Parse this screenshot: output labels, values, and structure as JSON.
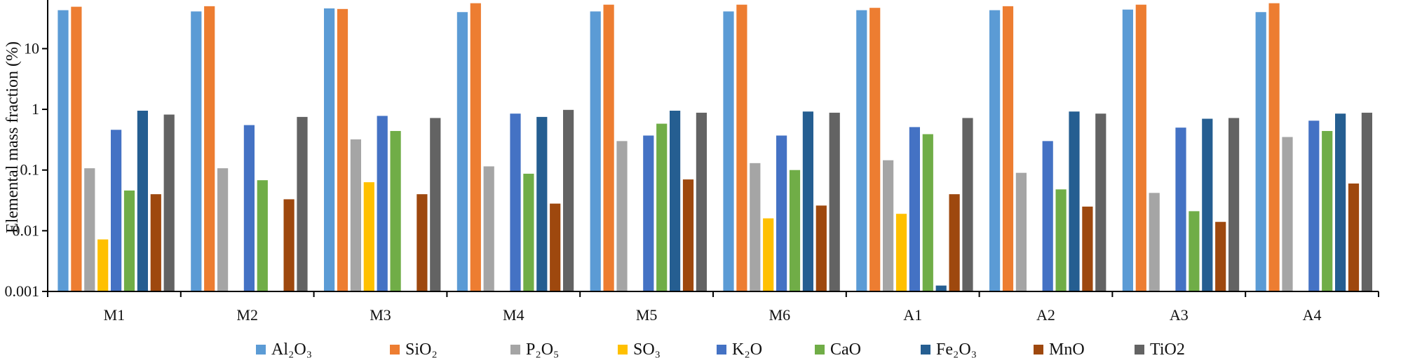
{
  "chart_data": {
    "type": "bar",
    "title": "",
    "xlabel": "",
    "ylabel": "Elemental mass fraction (%)",
    "yscale": "log",
    "ylim": [
      0.001,
      60
    ],
    "yticks": [
      0.001,
      0.01,
      0.1,
      1,
      10
    ],
    "ytick_labels": [
      "0.001",
      "0.01",
      "0.1",
      "1",
      "10"
    ],
    "grid": false,
    "legend_position": "bottom",
    "categories": [
      "M1",
      "M2",
      "M3",
      "M4",
      "M5",
      "M6",
      "A1",
      "A2",
      "A3",
      "A4"
    ],
    "series": [
      {
        "name": "Al₂O₃",
        "color": "#5B9BD5",
        "values": [
          43,
          41,
          46,
          40,
          41,
          41,
          43,
          43,
          44,
          40
        ]
      },
      {
        "name": "SiO₂",
        "color": "#ED7D31",
        "values": [
          49,
          50,
          45,
          56,
          53,
          53,
          47,
          50,
          53,
          56
        ]
      },
      {
        "name": "P₂O₅",
        "color": "#A5A5A5",
        "values": [
          0.107,
          0.107,
          0.32,
          0.115,
          0.3,
          0.13,
          0.145,
          0.09,
          0.042,
          0.35
        ]
      },
      {
        "name": "SO₃",
        "color": "#FFC000",
        "values": [
          0.0072,
          null,
          0.063,
          null,
          null,
          0.016,
          0.019,
          null,
          null,
          null
        ]
      },
      {
        "name": "K₂O",
        "color": "#4472C4",
        "values": [
          0.46,
          0.55,
          0.78,
          0.85,
          0.37,
          0.37,
          0.51,
          0.3,
          0.5,
          0.65
        ]
      },
      {
        "name": "CaO",
        "color": "#70AD47",
        "values": [
          0.046,
          0.068,
          0.44,
          0.087,
          0.58,
          0.1,
          0.39,
          0.048,
          0.021,
          0.44
        ]
      },
      {
        "name": "Fe₂O₃",
        "color": "#255E91",
        "values": [
          0.95,
          null,
          null,
          0.75,
          0.95,
          0.92,
          0.00125,
          0.92,
          0.7,
          0.85
        ]
      },
      {
        "name": "MnO",
        "color": "#9E480E",
        "values": [
          0.04,
          0.033,
          0.04,
          0.028,
          0.07,
          0.026,
          0.04,
          0.025,
          0.014,
          0.06
        ]
      },
      {
        "name": "TiO2",
        "color": "#636363",
        "values": [
          0.82,
          0.75,
          0.72,
          0.98,
          0.88,
          0.88,
          0.72,
          0.85,
          0.72,
          0.88
        ]
      }
    ]
  }
}
